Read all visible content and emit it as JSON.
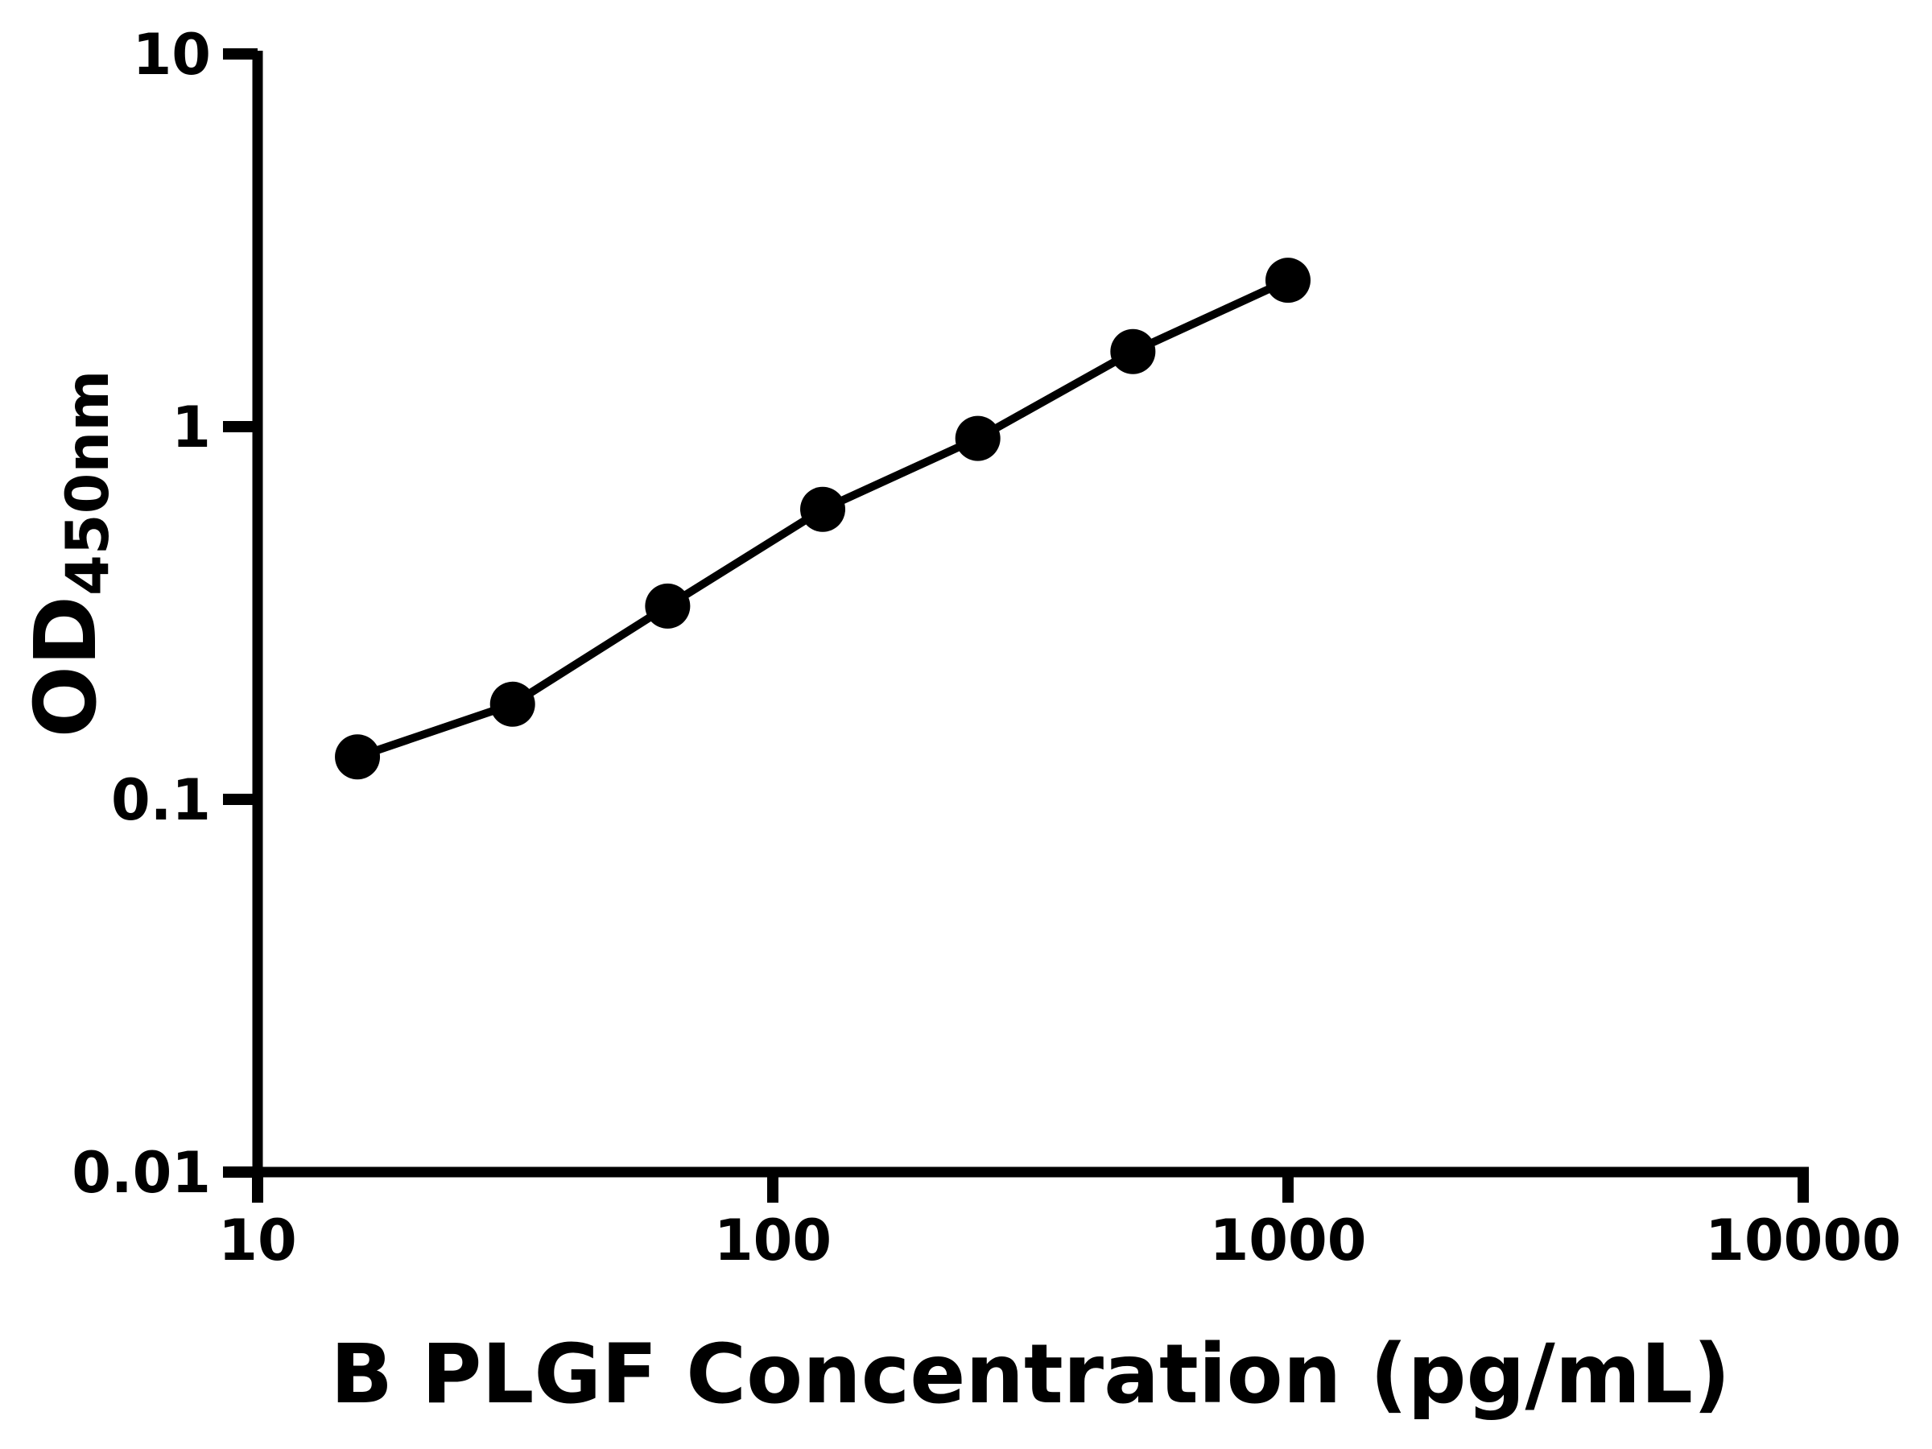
{
  "figure": {
    "background": "#ffffff",
    "foreground": "#000000"
  },
  "chart_data": {
    "type": "scatter",
    "subtype": "connected-points",
    "title": "",
    "xlabel": "B PLGF Concentration (pg/mL)",
    "ylabel": "OD",
    "ylabel_subscript": "450nm",
    "x": [
      15.625,
      31.25,
      62.5,
      125,
      250,
      500,
      1000
    ],
    "y": [
      0.13,
      0.18,
      0.33,
      0.6,
      0.93,
      1.59,
      2.47
    ],
    "xscale": "log",
    "yscale": "log",
    "xlim": [
      10,
      10000
    ],
    "ylim": [
      0.01,
      10
    ],
    "xticks": {
      "values": [
        10,
        100,
        1000,
        10000
      ],
      "labels": [
        "10",
        "100",
        "1000",
        "10000"
      ]
    },
    "yticks": {
      "values": [
        10,
        1,
        0.1,
        0.01
      ],
      "labels": [
        "10",
        "1",
        "0.1",
        "0.01"
      ]
    },
    "grid": false,
    "legend": null,
    "minor_ticks": false,
    "marker_shape": "circle",
    "marker_color": "#000000",
    "line_color": "#000000",
    "background": "#ffffff"
  }
}
